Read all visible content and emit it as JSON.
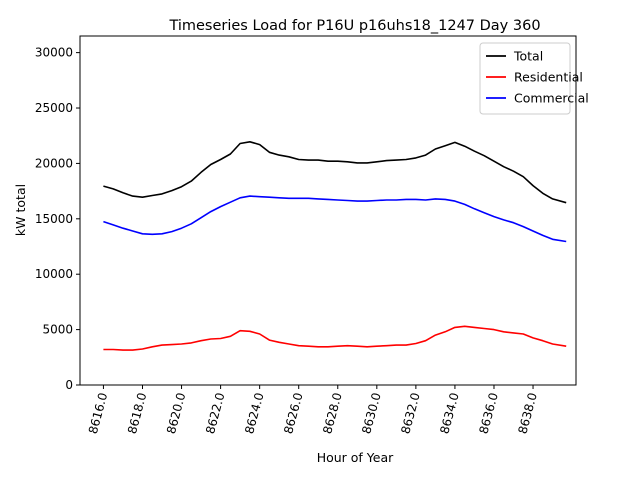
{
  "chart_data": {
    "type": "line",
    "title": "Timeseries Load for P16U p16uhs18_1247  Day 360",
    "xlabel": "Hour of Year",
    "ylabel": "kW total",
    "xlim": [
      8614.8,
      8640.2
    ],
    "ylim": [
      0,
      31500
    ],
    "x_ticks": [
      8616,
      8618,
      8620,
      8622,
      8624,
      8626,
      8628,
      8630,
      8632,
      8634,
      8636,
      8638
    ],
    "x_tick_labels": [
      "8616.0",
      "8618.0",
      "8620.0",
      "8622.0",
      "8624.0",
      "8626.0",
      "8628.0",
      "8630.0",
      "8632.0",
      "8634.0",
      "8636.0",
      "8638.0"
    ],
    "y_ticks": [
      0,
      5000,
      10000,
      15000,
      20000,
      25000,
      30000
    ],
    "y_tick_labels": [
      "0",
      "5000",
      "10000",
      "15000",
      "20000",
      "25000",
      "30000"
    ],
    "legend_position": "top-right",
    "grid": false,
    "series": [
      {
        "name": "Total",
        "color": "#000000",
        "points": [
          [
            8616.0,
            17950
          ],
          [
            8616.5,
            17700
          ],
          [
            8617.0,
            17350
          ],
          [
            8617.5,
            17050
          ],
          [
            8618.0,
            16950
          ],
          [
            8618.5,
            17100
          ],
          [
            8619.0,
            17250
          ],
          [
            8619.5,
            17550
          ],
          [
            8620.0,
            17900
          ],
          [
            8620.5,
            18400
          ],
          [
            8621.0,
            19200
          ],
          [
            8621.5,
            19900
          ],
          [
            8622.0,
            20350
          ],
          [
            8622.5,
            20850
          ],
          [
            8623.0,
            21800
          ],
          [
            8623.5,
            21950
          ],
          [
            8624.0,
            21700
          ],
          [
            8624.5,
            21000
          ],
          [
            8625.0,
            20750
          ],
          [
            8625.5,
            20600
          ],
          [
            8626.0,
            20350
          ],
          [
            8626.5,
            20300
          ],
          [
            8627.0,
            20300
          ],
          [
            8627.5,
            20200
          ],
          [
            8628.0,
            20200
          ],
          [
            8628.5,
            20150
          ],
          [
            8629.0,
            20050
          ],
          [
            8629.5,
            20050
          ],
          [
            8630.0,
            20150
          ],
          [
            8630.5,
            20250
          ],
          [
            8631.0,
            20300
          ],
          [
            8631.5,
            20350
          ],
          [
            8632.0,
            20500
          ],
          [
            8632.5,
            20750
          ],
          [
            8633.0,
            21300
          ],
          [
            8633.5,
            21600
          ],
          [
            8634.0,
            21900
          ],
          [
            8634.5,
            21550
          ],
          [
            8635.0,
            21100
          ],
          [
            8635.5,
            20700
          ],
          [
            8636.0,
            20200
          ],
          [
            8636.5,
            19700
          ],
          [
            8637.0,
            19300
          ],
          [
            8637.5,
            18800
          ],
          [
            8638.0,
            18000
          ],
          [
            8638.5,
            17300
          ],
          [
            8639.0,
            16800
          ],
          [
            8639.7,
            16450
          ]
        ]
      },
      {
        "name": "Residential",
        "color": "#ff0000",
        "points": [
          [
            8616.0,
            3200
          ],
          [
            8616.5,
            3200
          ],
          [
            8617.0,
            3150
          ],
          [
            8617.5,
            3150
          ],
          [
            8618.0,
            3250
          ],
          [
            8618.5,
            3450
          ],
          [
            8619.0,
            3600
          ],
          [
            8619.5,
            3650
          ],
          [
            8620.0,
            3700
          ],
          [
            8620.5,
            3800
          ],
          [
            8621.0,
            4000
          ],
          [
            8621.5,
            4150
          ],
          [
            8622.0,
            4200
          ],
          [
            8622.5,
            4400
          ],
          [
            8623.0,
            4900
          ],
          [
            8623.5,
            4850
          ],
          [
            8624.0,
            4600
          ],
          [
            8624.5,
            4050
          ],
          [
            8625.0,
            3850
          ],
          [
            8625.5,
            3700
          ],
          [
            8626.0,
            3550
          ],
          [
            8626.5,
            3500
          ],
          [
            8627.0,
            3450
          ],
          [
            8627.5,
            3450
          ],
          [
            8628.0,
            3500
          ],
          [
            8628.5,
            3550
          ],
          [
            8629.0,
            3500
          ],
          [
            8629.5,
            3450
          ],
          [
            8630.0,
            3500
          ],
          [
            8630.5,
            3550
          ],
          [
            8631.0,
            3600
          ],
          [
            8631.5,
            3600
          ],
          [
            8632.0,
            3750
          ],
          [
            8632.5,
            4000
          ],
          [
            8633.0,
            4500
          ],
          [
            8633.5,
            4800
          ],
          [
            8634.0,
            5200
          ],
          [
            8634.5,
            5300
          ],
          [
            8635.0,
            5200
          ],
          [
            8635.5,
            5100
          ],
          [
            8636.0,
            5000
          ],
          [
            8636.5,
            4800
          ],
          [
            8637.0,
            4700
          ],
          [
            8637.5,
            4600
          ],
          [
            8638.0,
            4250
          ],
          [
            8638.5,
            4000
          ],
          [
            8639.0,
            3700
          ],
          [
            8639.7,
            3500
          ]
        ]
      },
      {
        "name": "Commercial",
        "color": "#0000ff",
        "points": [
          [
            8616.0,
            14750
          ],
          [
            8616.5,
            14450
          ],
          [
            8617.0,
            14150
          ],
          [
            8617.5,
            13900
          ],
          [
            8618.0,
            13650
          ],
          [
            8618.5,
            13600
          ],
          [
            8619.0,
            13650
          ],
          [
            8619.5,
            13850
          ],
          [
            8620.0,
            14150
          ],
          [
            8620.5,
            14550
          ],
          [
            8621.0,
            15100
          ],
          [
            8621.5,
            15650
          ],
          [
            8622.0,
            16100
          ],
          [
            8622.5,
            16500
          ],
          [
            8623.0,
            16900
          ],
          [
            8623.5,
            17050
          ],
          [
            8624.0,
            17000
          ],
          [
            8624.5,
            16950
          ],
          [
            8625.0,
            16900
          ],
          [
            8625.5,
            16850
          ],
          [
            8626.0,
            16850
          ],
          [
            8626.5,
            16850
          ],
          [
            8627.0,
            16800
          ],
          [
            8627.5,
            16750
          ],
          [
            8628.0,
            16700
          ],
          [
            8628.5,
            16650
          ],
          [
            8629.0,
            16600
          ],
          [
            8629.5,
            16600
          ],
          [
            8630.0,
            16650
          ],
          [
            8630.5,
            16700
          ],
          [
            8631.0,
            16700
          ],
          [
            8631.5,
            16750
          ],
          [
            8632.0,
            16750
          ],
          [
            8632.5,
            16700
          ],
          [
            8633.0,
            16800
          ],
          [
            8633.5,
            16750
          ],
          [
            8634.0,
            16600
          ],
          [
            8634.5,
            16300
          ],
          [
            8635.0,
            15900
          ],
          [
            8635.5,
            15550
          ],
          [
            8636.0,
            15200
          ],
          [
            8636.5,
            14900
          ],
          [
            8637.0,
            14650
          ],
          [
            8637.5,
            14300
          ],
          [
            8638.0,
            13900
          ],
          [
            8638.5,
            13500
          ],
          [
            8639.0,
            13150
          ],
          [
            8639.7,
            12950
          ]
        ]
      }
    ]
  }
}
